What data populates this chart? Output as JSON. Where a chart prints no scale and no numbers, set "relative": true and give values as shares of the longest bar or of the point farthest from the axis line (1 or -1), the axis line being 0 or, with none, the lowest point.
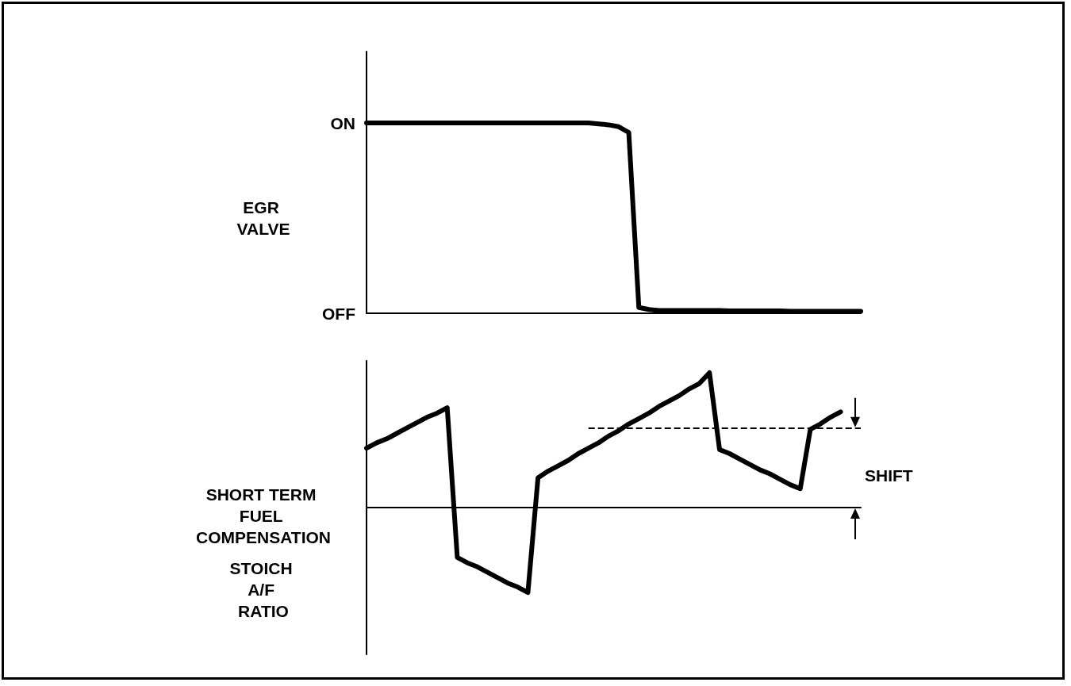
{
  "chart_data": [
    {
      "type": "line",
      "ylabel": "EGR VALVE",
      "categories": [
        null,
        null,
        null,
        null,
        null,
        null,
        null,
        null,
        null,
        null,
        null,
        null,
        null,
        null,
        null,
        null,
        null,
        null,
        null,
        null,
        null,
        null,
        null,
        null,
        null,
        null,
        null,
        null,
        null,
        null,
        null,
        null,
        null,
        null,
        null,
        null,
        null,
        null,
        null,
        null,
        null,
        null,
        null,
        null,
        null,
        null,
        null,
        null,
        null,
        null
      ],
      "series": [
        {
          "color": "#000000",
          "values": [
            1,
            1,
            1,
            1,
            1,
            1,
            1,
            1,
            1,
            1,
            1,
            1,
            1,
            1,
            1,
            1,
            1,
            1,
            1,
            1,
            1,
            1,
            1,
            0.995,
            0.99,
            0.98,
            0.95,
            0.03,
            0.02,
            0.015,
            0.015,
            0.015,
            0.015,
            0.015,
            0.015,
            0.015,
            0.012,
            0.012,
            0.012,
            0.012,
            0.012,
            0.012,
            0.01,
            0.01,
            0.01,
            0.01,
            0.01,
            0.01,
            0.01,
            0.01
          ]
        }
      ],
      "relative": true,
      "annotations": [
        "ON",
        "OFF"
      ],
      "grid": false,
      "marker": "none",
      "line_style": "solid"
    },
    {
      "type": "line",
      "ylabel": "SHORT TERM FUEL COMPENSATION",
      "relative": true,
      "categories": [
        null,
        null,
        null,
        null,
        null,
        null,
        null,
        null,
        null,
        null,
        null,
        null,
        null,
        null,
        null,
        null,
        null,
        null,
        null,
        null,
        null,
        null,
        null,
        null,
        null,
        null,
        null,
        null,
        null,
        null,
        null,
        null,
        null,
        null,
        null,
        null,
        null,
        null,
        null,
        null,
        null,
        null,
        null,
        null,
        null,
        null,
        null,
        null,
        null,
        null
      ],
      "series": [
        {
          "color": "#000000",
          "values": [
            0.44,
            0.48,
            0.51,
            0.55,
            0.59,
            0.63,
            0.67,
            0.7,
            0.74,
            -0.37,
            -0.41,
            -0.44,
            -0.48,
            -0.52,
            -0.56,
            -0.59,
            -0.63,
            0.22,
            0.27,
            0.31,
            0.35,
            0.4,
            0.44,
            0.48,
            0.53,
            0.57,
            0.62,
            0.66,
            0.7,
            0.75,
            0.79,
            0.83,
            0.88,
            0.92,
            1,
            0.43,
            0.4,
            0.36,
            0.32,
            0.28,
            0.25,
            0.21,
            0.17,
            0.14,
            0.58,
            0.62,
            0.67,
            0.71,
            null,
            null
          ]
        }
      ],
      "ref_lines": [
        {
          "axis": "y",
          "value": 0.59,
          "line_style": "dashed",
          "color": "#000000"
        },
        {
          "axis": "y",
          "value": 0,
          "label": "STOICH A/F RATIO",
          "color": "#000000",
          "line_style": "solid"
        }
      ],
      "annotations": [
        "SHIFT"
      ],
      "grid": false,
      "marker": "none",
      "line_style": "solid"
    }
  ]
}
